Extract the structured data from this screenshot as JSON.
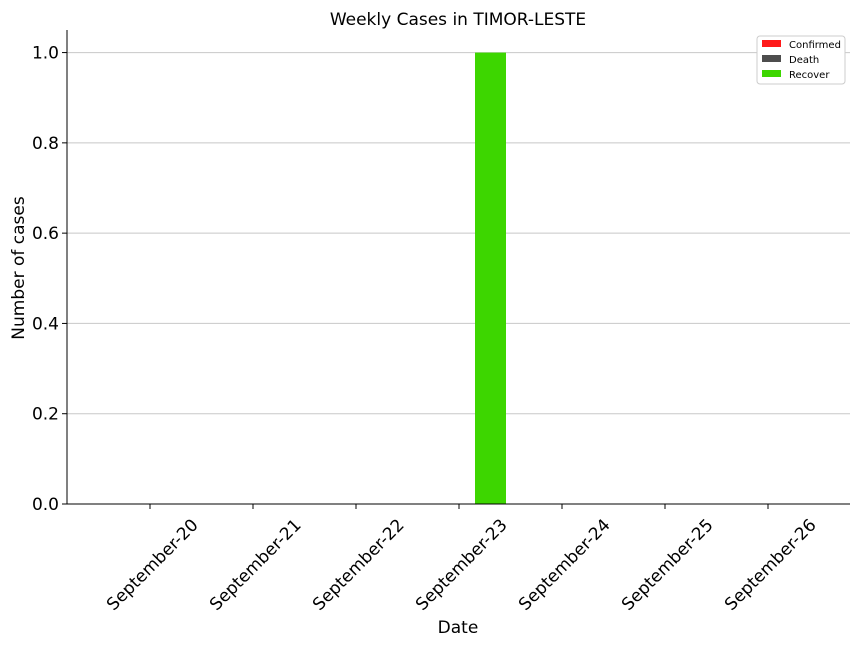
{
  "chart_data": {
    "type": "bar",
    "title": "Weekly Cases in TIMOR-LESTE",
    "xlabel": "Date",
    "ylabel": "Number of cases",
    "categories": [
      "September-20",
      "September-21",
      "September-22",
      "September-23",
      "September-24",
      "September-25",
      "September-26"
    ],
    "series": [
      {
        "name": "Confirmed",
        "color": "#ff1a1a",
        "values": [
          0,
          0,
          0,
          0,
          0,
          0,
          0
        ]
      },
      {
        "name": "Death",
        "color": "#4d4d4d",
        "values": [
          0,
          0,
          0,
          0,
          0,
          0,
          0
        ]
      },
      {
        "name": "Recover",
        "color": "#3dd600",
        "values": [
          0,
          0,
          0,
          1,
          0,
          0,
          0
        ]
      }
    ],
    "ylim": [
      0,
      1.05
    ],
    "yticks": [
      "0.0",
      "0.2",
      "0.4",
      "0.6",
      "0.8",
      "1.0"
    ],
    "grid": "horizontal",
    "legend_position": "top-right"
  }
}
